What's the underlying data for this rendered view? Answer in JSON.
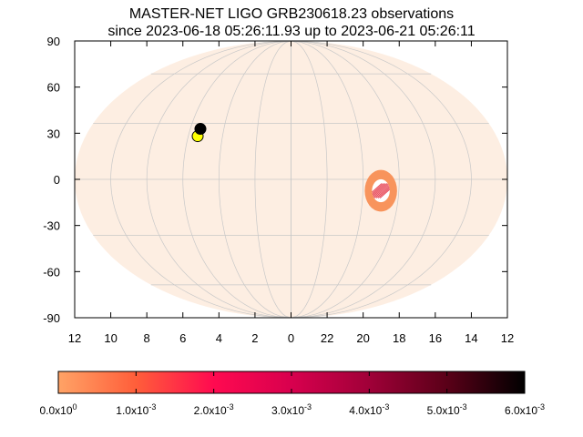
{
  "chart_data": {
    "type": "scatter",
    "projection": "mollweide",
    "title": "MASTER-NET LIGO GRB230618.23 observations",
    "subtitle": "since 2023-06-18 05:26:11.93 up to 2023-06-21 05:26:11",
    "xlabel": "",
    "ylabel": "",
    "x_ticks": [
      "12",
      "10",
      "8",
      "6",
      "4",
      "2",
      "0",
      "22",
      "20",
      "18",
      "16",
      "14",
      "12"
    ],
    "y_ticks": [
      "90",
      "60",
      "30",
      "0",
      "-30",
      "-60",
      "-90"
    ],
    "ylim": [
      -90,
      90
    ],
    "ra_range_hours": [
      12,
      12
    ],
    "grid": true,
    "background_color": "#fdeee2",
    "grid_color": "#c8c8c8",
    "probability_region": {
      "ra_hours": 19.0,
      "dec": -6,
      "ra_radius_hours": 0.9,
      "dec_radius": 11,
      "fill_color": "#f8945c",
      "core_color": "#e64050"
    },
    "observations": [
      {
        "ra_hours": 5.45,
        "dec": 23,
        "color": "#ffff00"
      },
      {
        "ra_hours": 5.4,
        "dec": 27,
        "color": "#000000"
      }
    ],
    "colorbar": {
      "min": 0,
      "max": 0.006,
      "tick_values": [
        0,
        0.001,
        0.002,
        0.003,
        0.004,
        0.005,
        0.006
      ],
      "tick_labels": [
        {
          "mantissa": "0.0x10",
          "exp": "0"
        },
        {
          "mantissa": "1.0x10",
          "exp": "-3"
        },
        {
          "mantissa": "2.0x10",
          "exp": "-3"
        },
        {
          "mantissa": "3.0x10",
          "exp": "-3"
        },
        {
          "mantissa": "4.0x10",
          "exp": "-3"
        },
        {
          "mantissa": "5.0x10",
          "exp": "-3"
        },
        {
          "mantissa": "6.0x10",
          "exp": "-3"
        }
      ],
      "colors": [
        "#ffa366",
        "#ff5e3a",
        "#ff0a50",
        "#d8004e",
        "#a00038",
        "#5a0018",
        "#000000"
      ]
    }
  }
}
